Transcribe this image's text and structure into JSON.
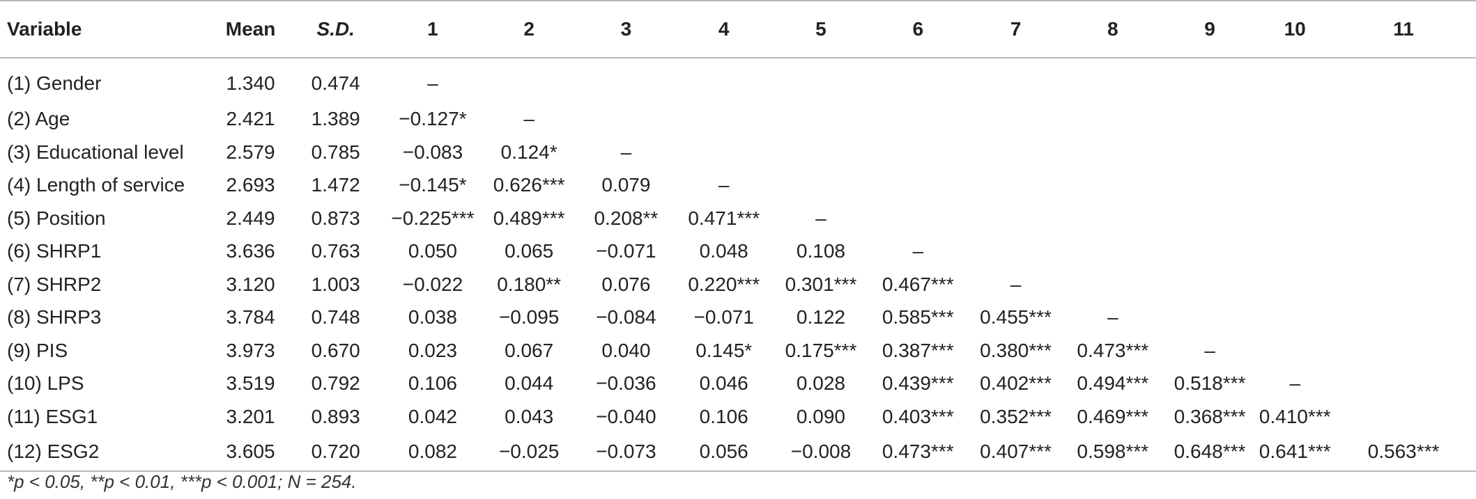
{
  "table": {
    "headers": [
      "Variable",
      "Mean",
      "S.D.",
      "1",
      "2",
      "3",
      "4",
      "5",
      "6",
      "7",
      "8",
      "9",
      "10",
      "11"
    ],
    "rows": [
      [
        "(1) Gender",
        "1.340",
        "0.474",
        "–",
        "",
        "",
        "",
        "",
        "",
        "",
        "",
        "",
        "",
        ""
      ],
      [
        "(2) Age",
        "2.421",
        "1.389",
        "−0.127*",
        "–",
        "",
        "",
        "",
        "",
        "",
        "",
        "",
        "",
        ""
      ],
      [
        "(3) Educational level",
        "2.579",
        "0.785",
        "−0.083",
        "0.124*",
        "–",
        "",
        "",
        "",
        "",
        "",
        "",
        "",
        ""
      ],
      [
        "(4) Length of service",
        "2.693",
        "1.472",
        "−0.145*",
        "0.626***",
        "0.079",
        "–",
        "",
        "",
        "",
        "",
        "",
        "",
        ""
      ],
      [
        "(5) Position",
        "2.449",
        "0.873",
        "−0.225***",
        "0.489***",
        "0.208**",
        "0.471***",
        "–",
        "",
        "",
        "",
        "",
        "",
        ""
      ],
      [
        "(6) SHRP1",
        "3.636",
        "0.763",
        "0.050",
        "0.065",
        "−0.071",
        "0.048",
        "0.108",
        "–",
        "",
        "",
        "",
        "",
        ""
      ],
      [
        "(7) SHRP2",
        "3.120",
        "1.003",
        "−0.022",
        "0.180**",
        "0.076",
        "0.220***",
        "0.301***",
        "0.467***",
        "–",
        "",
        "",
        "",
        ""
      ],
      [
        "(8) SHRP3",
        "3.784",
        "0.748",
        "0.038",
        "−0.095",
        "−0.084",
        "−0.071",
        "0.122",
        "0.585***",
        "0.455***",
        "–",
        "",
        "",
        ""
      ],
      [
        "(9) PIS",
        "3.973",
        "0.670",
        "0.023",
        "0.067",
        "0.040",
        "0.145*",
        "0.175***",
        "0.387***",
        "0.380***",
        "0.473***",
        "–",
        "",
        ""
      ],
      [
        "(10) LPS",
        "3.519",
        "0.792",
        "0.106",
        "0.044",
        "−0.036",
        "0.046",
        "0.028",
        "0.439***",
        "0.402***",
        "0.494***",
        "0.518***",
        "–",
        ""
      ],
      [
        "(11) ESG1",
        "3.201",
        "0.893",
        "0.042",
        "0.043",
        "−0.040",
        "0.106",
        "0.090",
        "0.403***",
        "0.352***",
        "0.469***",
        "0.368***",
        "0.410***",
        ""
      ],
      [
        "(12) ESG2",
        "3.605",
        "0.720",
        "0.082",
        "−0.025",
        "−0.073",
        "0.056",
        "−0.008",
        "0.473***",
        "0.407***",
        "0.598***",
        "0.648***",
        "0.641***",
        "0.563***"
      ]
    ],
    "note": "*p < 0.05, **p < 0.01, ***p < 0.001; N = 254."
  }
}
